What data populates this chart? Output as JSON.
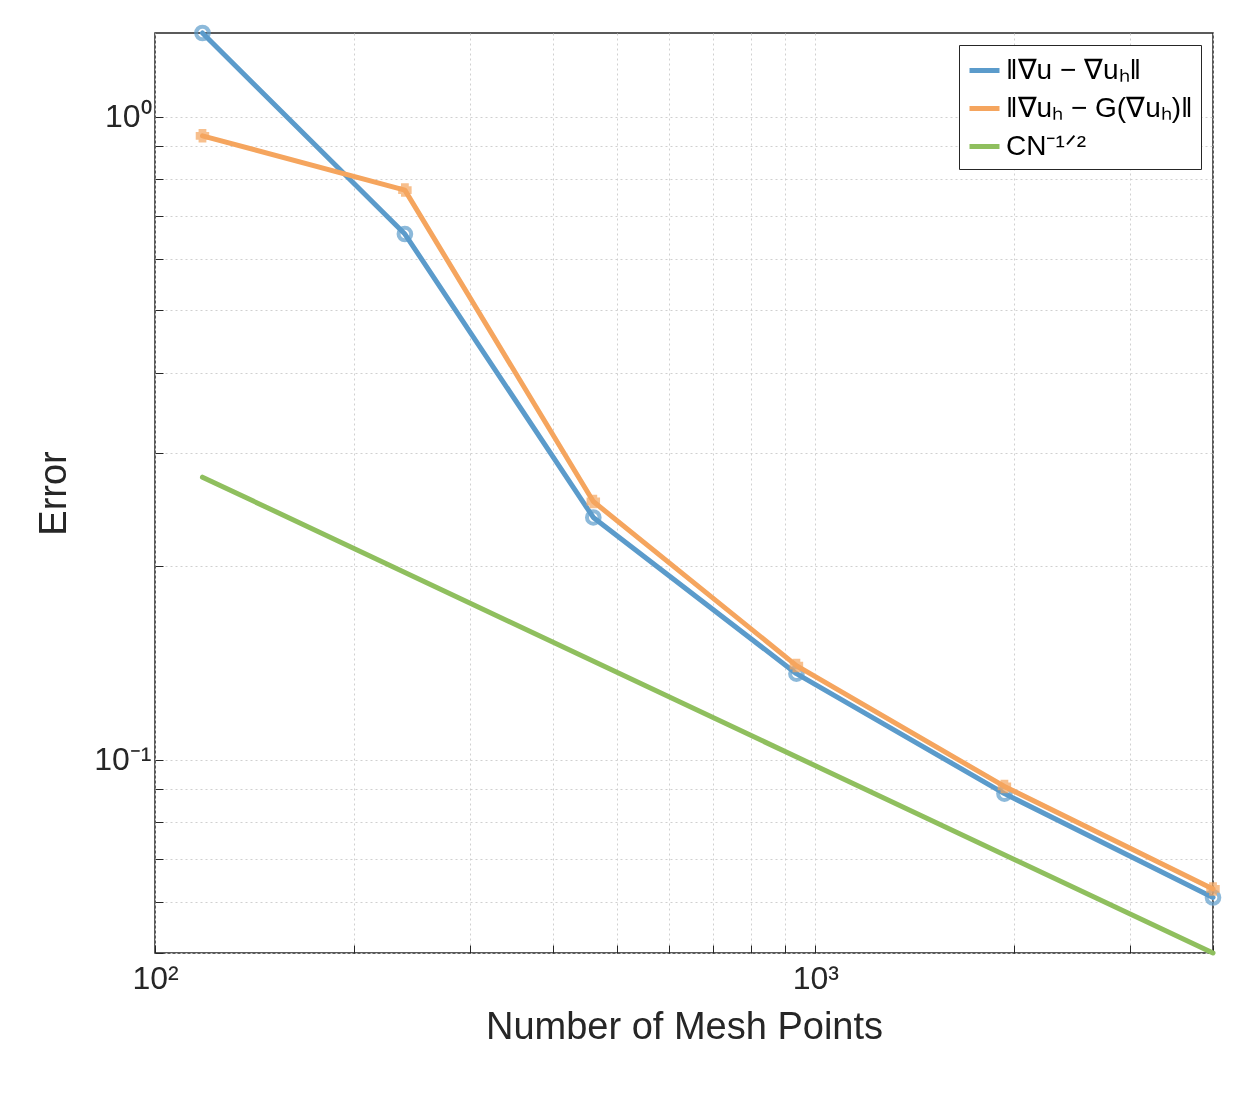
{
  "chart_data": {
    "type": "line",
    "xlabel": "Number of Mesh Points",
    "ylabel": "Error",
    "log": "xy",
    "grid": true,
    "legend": "top right",
    "line_style": "solid",
    "x": [
      118,
      239,
      461,
      936,
      1933,
      4000
    ],
    "xlim": [
      100,
      4000
    ],
    "xticks": [
      {
        "value": 100,
        "label": "10²"
      },
      {
        "value": 200,
        "label": null
      },
      {
        "value": 300,
        "label": null
      },
      {
        "value": 400,
        "label": null
      },
      {
        "value": 500,
        "label": null
      },
      {
        "value": 600,
        "label": null
      },
      {
        "value": 700,
        "label": null
      },
      {
        "value": 800,
        "label": null
      },
      {
        "value": 900,
        "label": null
      },
      {
        "value": 1000,
        "label": "10³"
      },
      {
        "value": 2000,
        "label": null
      },
      {
        "value": 3000,
        "label": null
      },
      {
        "value": 4000,
        "label": null
      }
    ],
    "ylim": [
      0.05,
      1.35
    ],
    "yticks": [
      {
        "value": 0.05,
        "label": null
      },
      {
        "value": 0.06,
        "label": null
      },
      {
        "value": 0.07,
        "label": null
      },
      {
        "value": 0.08,
        "label": null
      },
      {
        "value": 0.09,
        "label": null
      },
      {
        "value": 0.1,
        "label": "10⁻¹"
      },
      {
        "value": 0.2,
        "label": null
      },
      {
        "value": 0.3,
        "label": null
      },
      {
        "value": 0.4,
        "label": null
      },
      {
        "value": 0.5,
        "label": null
      },
      {
        "value": 0.6,
        "label": null
      },
      {
        "value": 0.7,
        "label": null
      },
      {
        "value": 0.8,
        "label": null
      },
      {
        "value": 0.9,
        "label": null
      },
      {
        "value": 1,
        "label": "10⁰"
      }
    ],
    "series": [
      {
        "name": "‖∇u − ∇uₕ‖",
        "color": "#5b9bcb",
        "marker": "circle",
        "values": [
          1.35,
          0.657,
          0.238,
          0.136,
          0.0885,
          0.061
        ]
      },
      {
        "name": "‖∇uₕ − G(∇uₕ)‖",
        "color": "#f5a55e",
        "marker": "cross",
        "values": [
          0.934,
          0.769,
          0.252,
          0.14,
          0.0908,
          0.0629
        ]
      },
      {
        "name": "CN⁻¹ᐟ²",
        "color": "#8fbf5e",
        "marker": "none",
        "x": [
          118,
          4000
        ],
        "values": [
          0.275,
          0.05
        ]
      }
    ]
  }
}
